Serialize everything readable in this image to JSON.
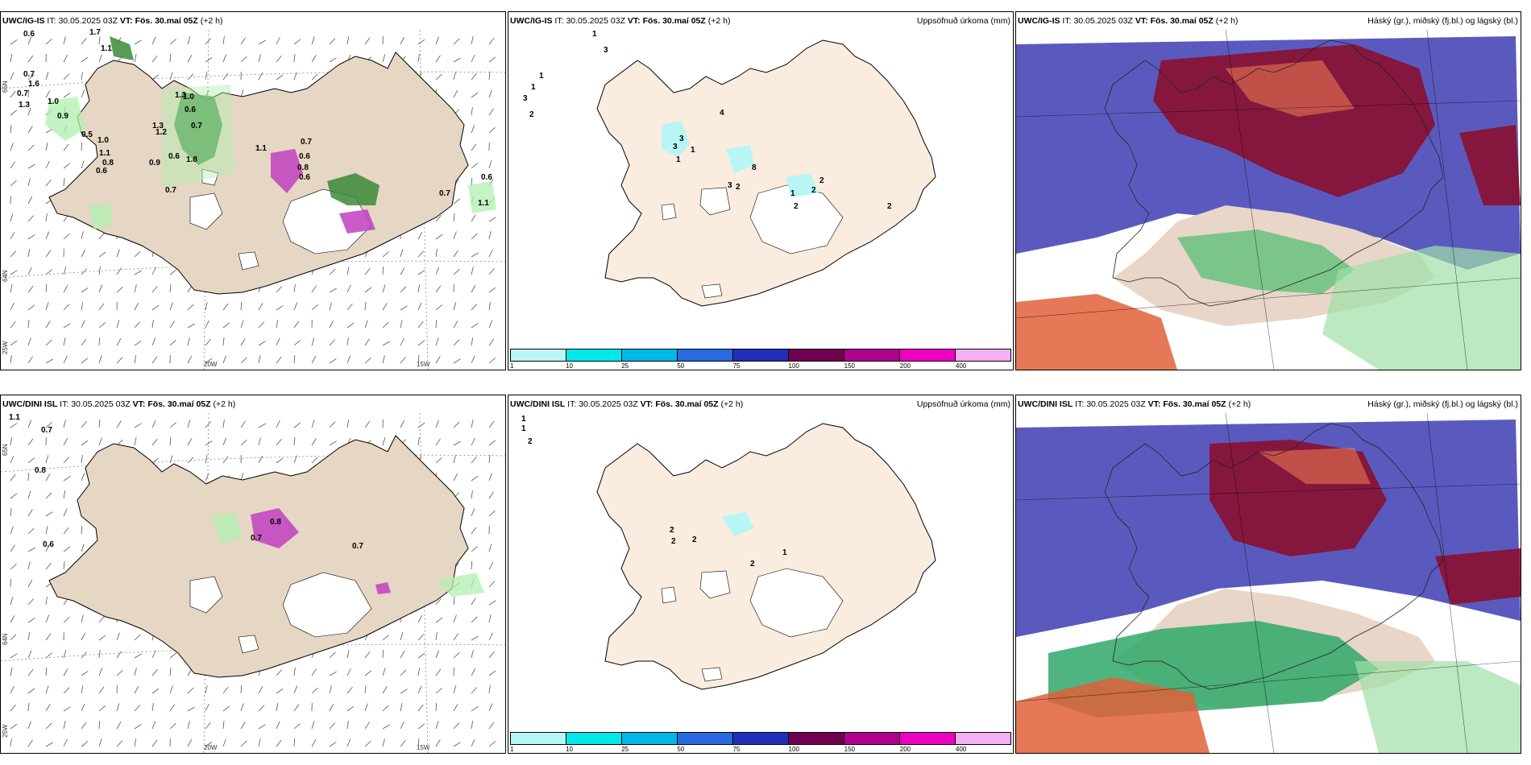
{
  "panels": {
    "top_left": {
      "model": "UWC/IG-IS",
      "it": "30.05.2025 03Z",
      "vt": "Fös. 30.maí 05Z",
      "step": "(+2 h)",
      "right": ""
    },
    "top_mid": {
      "model": "UWC/IG-IS",
      "it": "30.05.2025 03Z",
      "vt": "Fös. 30.maí 05Z",
      "step": "(+2 h)",
      "right": "Uppsöfnuð úrkoma (mm)"
    },
    "top_right": {
      "model": "UWC/IG-IS",
      "it": "30.05.2025 03Z",
      "vt": "Fös. 30.maí 05Z",
      "step": "(+2 h)",
      "right": "Háský (gr.), miðský (fj.bl.) og lágský (bl.)"
    },
    "bot_left": {
      "model": "UWC/DINI ISL",
      "it": "30.05.2025 03Z",
      "vt": "Fös. 30.maí 05Z",
      "step": "(+2 h)",
      "right": ""
    },
    "bot_mid": {
      "model": "UWC/DINI ISL",
      "it": "30.05.2025 03Z",
      "vt": "Fös. 30.maí 05Z",
      "step": "(+2 h)",
      "right": "Uppsöfnuð úrkoma (mm)"
    },
    "bot_right": {
      "model": "UWC/DINI ISL",
      "it": "30.05.2025 03Z",
      "vt": "Fös. 30.maí 05Z",
      "step": "(+2 h)",
      "right": "Háský (gr.), miðský (fj.bl.) og lágský (bl.)"
    }
  },
  "labels": {
    "it": "IT:",
    "vt": "VT:"
  },
  "legend": {
    "ticks": [
      "1",
      "10",
      "25",
      "50",
      "75",
      "100",
      "150",
      "200",
      "400"
    ],
    "colors": [
      "#b8f6f6",
      "#00e8e8",
      "#00b8e8",
      "#2a6ae0",
      "#2030b8",
      "#700050",
      "#b00090",
      "#f000c0",
      "#f4b0f0"
    ]
  },
  "axes": {
    "lon": [
      "20W",
      "15W"
    ],
    "lat_top": [
      "65N",
      "64N"
    ],
    "lat_bottom": [
      "65N",
      "64N"
    ],
    "corner": "25W"
  },
  "values": {
    "top_left": [
      "0.6",
      "1.7",
      "1.1",
      "0.7",
      "1.6",
      "0.7",
      "1.3",
      "1.0",
      "0.9",
      "0.5",
      "1.0",
      "1.3",
      "1.0",
      "0.6",
      "0.7",
      "1.3",
      "1.2",
      "1.1",
      "0.8",
      "0.6",
      "0.9",
      "0.6",
      "1.8",
      "0.7",
      "1.1",
      "0.7",
      "0.6",
      "0.8",
      "0.6",
      "0.7",
      "0.6",
      "1.1"
    ],
    "top_mid": [
      "1",
      "3",
      "1",
      "3",
      "1",
      "2",
      "4",
      "3",
      "3",
      "1",
      "1",
      "8",
      "2",
      "2",
      "2",
      "3",
      "2",
      "2",
      "1"
    ],
    "bot_left": [
      "1.1",
      "0.7",
      "0.8",
      "0.6",
      "0.7",
      "0.8",
      "0.7"
    ],
    "bot_mid": [
      "1",
      "1",
      "2",
      "2",
      "2",
      "2",
      "1",
      "2"
    ]
  },
  "colors": {
    "land": "#e8d9c8",
    "land_precip": "#fbe8d8",
    "high_cloud": "#8a1030",
    "mid_cloud": "#3a3ab0",
    "low_cloud": "#6fd08a"
  }
}
